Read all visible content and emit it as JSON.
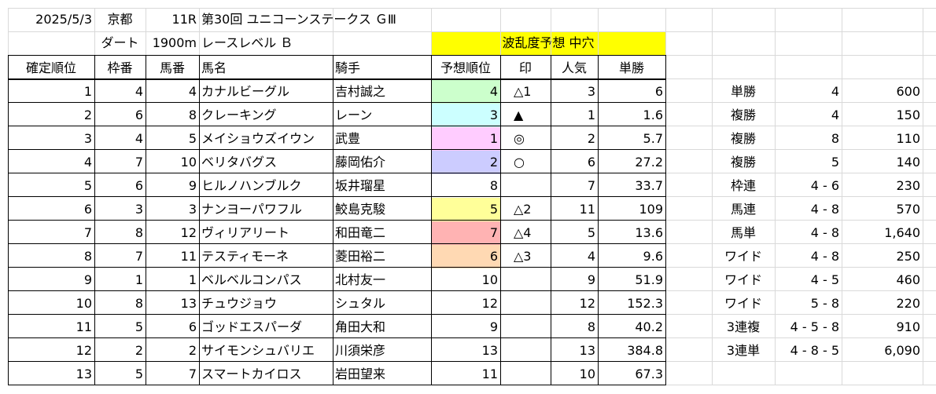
{
  "race_info": {
    "date": "2025/5/3",
    "venue": "京都",
    "race_no": "11R",
    "race_name": "第30回 ユニコーンステークス ＧⅢ",
    "surface": "ダート",
    "distance": "1900m",
    "race_level": "レースレベル Ｂ",
    "prediction_banner": "波乱度予想 中穴"
  },
  "columns": {
    "finish": "確定順位",
    "frame": "枠番",
    "horse_no": "馬番",
    "horse_name": "馬名",
    "jockey": "騎手",
    "predicted_rank": "予想順位",
    "mark": "印",
    "popularity": "人気",
    "win_odds": "単勝"
  },
  "rows": [
    {
      "finish": "1",
      "frame": "4",
      "horse_no": "4",
      "horse_name": "カナルビーグル",
      "jockey": "吉村誠之",
      "predicted_rank": "4",
      "mark": "△1",
      "popularity": "3",
      "win_odds": "6",
      "highlight": "#ccffcc"
    },
    {
      "finish": "2",
      "frame": "6",
      "horse_no": "8",
      "horse_name": "クレーキング",
      "jockey": "レーン",
      "predicted_rank": "3",
      "mark": "▲",
      "popularity": "1",
      "win_odds": "1.6",
      "highlight": "#ccffff"
    },
    {
      "finish": "3",
      "frame": "4",
      "horse_no": "5",
      "horse_name": "メイショウズイウン",
      "jockey": "武豊",
      "predicted_rank": "1",
      "mark": "◎",
      "popularity": "2",
      "win_odds": "5.7",
      "highlight": "#ffccff"
    },
    {
      "finish": "4",
      "frame": "7",
      "horse_no": "10",
      "horse_name": "ベリタバグス",
      "jockey": "藤岡佑介",
      "predicted_rank": "2",
      "mark": "○",
      "popularity": "6",
      "win_odds": "27.2",
      "highlight": "#ccccff"
    },
    {
      "finish": "5",
      "frame": "6",
      "horse_no": "9",
      "horse_name": "ヒルノハンブルク",
      "jockey": "坂井瑠星",
      "predicted_rank": "8",
      "mark": "",
      "popularity": "7",
      "win_odds": "33.7",
      "highlight": ""
    },
    {
      "finish": "6",
      "frame": "3",
      "horse_no": "3",
      "horse_name": "ナンヨーパワフル",
      "jockey": "鮫島克駿",
      "predicted_rank": "5",
      "mark": "△2",
      "popularity": "11",
      "win_odds": "109",
      "highlight": "#ffff99"
    },
    {
      "finish": "7",
      "frame": "8",
      "horse_no": "12",
      "horse_name": "ヴィリアリート",
      "jockey": "和田竜二",
      "predicted_rank": "7",
      "mark": "△4",
      "popularity": "5",
      "win_odds": "13.6",
      "highlight": "#ffb3b3"
    },
    {
      "finish": "8",
      "frame": "7",
      "horse_no": "11",
      "horse_name": "テスティモーネ",
      "jockey": "菱田裕二",
      "predicted_rank": "6",
      "mark": "△3",
      "popularity": "4",
      "win_odds": "9.6",
      "highlight": "#ffd9b3"
    },
    {
      "finish": "9",
      "frame": "1",
      "horse_no": "1",
      "horse_name": "ベルベルコンパス",
      "jockey": "北村友一",
      "predicted_rank": "10",
      "mark": "",
      "popularity": "9",
      "win_odds": "51.9",
      "highlight": ""
    },
    {
      "finish": "10",
      "frame": "8",
      "horse_no": "13",
      "horse_name": "チュウジョウ",
      "jockey": "シュタル",
      "predicted_rank": "12",
      "mark": "",
      "popularity": "12",
      "win_odds": "152.3",
      "highlight": ""
    },
    {
      "finish": "11",
      "frame": "5",
      "horse_no": "6",
      "horse_name": "ゴッドエスパーダ",
      "jockey": "角田大和",
      "predicted_rank": "9",
      "mark": "",
      "popularity": "8",
      "win_odds": "40.2",
      "highlight": ""
    },
    {
      "finish": "12",
      "frame": "2",
      "horse_no": "2",
      "horse_name": "サイモンシュバリエ",
      "jockey": "川須栄彦",
      "predicted_rank": "13",
      "mark": "",
      "popularity": "13",
      "win_odds": "384.8",
      "highlight": ""
    },
    {
      "finish": "13",
      "frame": "5",
      "horse_no": "7",
      "horse_name": "スマートカイロス",
      "jockey": "岩田望来",
      "predicted_rank": "11",
      "mark": "",
      "popularity": "10",
      "win_odds": "67.3",
      "highlight": ""
    }
  ],
  "payouts": [
    {
      "type": "単勝",
      "combo": "4",
      "amount": "600"
    },
    {
      "type": "複勝",
      "combo": "4",
      "amount": "150"
    },
    {
      "type": "複勝",
      "combo": "8",
      "amount": "110"
    },
    {
      "type": "複勝",
      "combo": "5",
      "amount": "140"
    },
    {
      "type": "枠連",
      "combo": "4 - 6",
      "amount": "230"
    },
    {
      "type": "馬連",
      "combo": "4 - 8",
      "amount": "570"
    },
    {
      "type": "馬単",
      "combo": "4 - 8",
      "amount": "1,640"
    },
    {
      "type": "ワイド",
      "combo": "4 - 8",
      "amount": "250"
    },
    {
      "type": "ワイド",
      "combo": "4 - 5",
      "amount": "460"
    },
    {
      "type": "ワイド",
      "combo": "5 - 8",
      "amount": "220"
    },
    {
      "type": "3連複",
      "combo": "4 - 5 - 8",
      "amount": "910"
    },
    {
      "type": "3連単",
      "combo": "4 - 8 - 5",
      "amount": "6,090"
    }
  ],
  "colors": {
    "banner": "#ffff00",
    "grid": "#d9d9d9",
    "border": "#000000"
  }
}
